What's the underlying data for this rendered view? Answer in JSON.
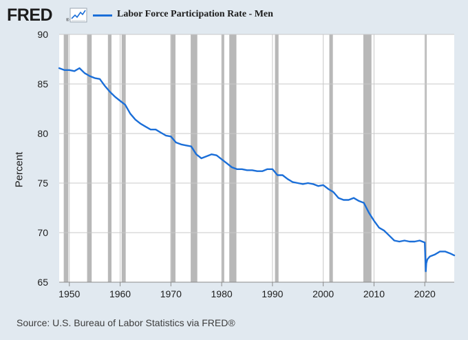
{
  "header": {
    "logo_text": "FRED",
    "logo_reg": "®",
    "legend_label": "Labor Force Participation Rate - Men"
  },
  "source_text": "Source: U.S. Bureau of Labor Statistics via FRED®",
  "colors": {
    "background": "#e1e9f0",
    "plot_bg": "#ffffff",
    "line": "#1a6ed8",
    "recession": "#b8b8b8",
    "grid": "#c8c8c8"
  },
  "chart_data": {
    "type": "line",
    "title": "",
    "xlabel": "",
    "ylabel": "Percent",
    "xlim": [
      1948,
      2025.8
    ],
    "ylim": [
      65,
      90
    ],
    "x_ticks": [
      1950,
      1960,
      1970,
      1980,
      1990,
      2000,
      2010,
      2020
    ],
    "x_tick_labels": [
      "1950",
      "1960",
      "1970",
      "1980",
      "1990",
      "2000",
      "2010",
      "2020"
    ],
    "y_ticks": [
      65,
      70,
      75,
      80,
      85,
      90
    ],
    "y_tick_labels": [
      "65",
      "70",
      "75",
      "80",
      "85",
      "90"
    ],
    "grid": true,
    "recessions": [
      [
        1948.9,
        1949.8
      ],
      [
        1953.5,
        1954.4
      ],
      [
        1957.6,
        1958.3
      ],
      [
        1960.3,
        1961.1
      ],
      [
        1969.9,
        1970.9
      ],
      [
        1973.9,
        1975.2
      ],
      [
        1980.0,
        1980.5
      ],
      [
        1981.5,
        1982.9
      ],
      [
        1990.5,
        1991.2
      ],
      [
        2001.2,
        2001.9
      ],
      [
        2007.9,
        2009.5
      ],
      [
        2020.1,
        2020.3
      ]
    ],
    "series": [
      {
        "name": "Labor Force Participation Rate - Men",
        "x": [
          1948.0,
          1949.0,
          1950.0,
          1951.0,
          1952.0,
          1953.0,
          1954.0,
          1955.0,
          1956.0,
          1957.0,
          1958.0,
          1959.0,
          1960.0,
          1961.0,
          1962.0,
          1963.0,
          1964.0,
          1965.0,
          1966.0,
          1967.0,
          1968.0,
          1969.0,
          1970.0,
          1971.0,
          1972.0,
          1973.0,
          1974.0,
          1975.0,
          1976.0,
          1977.0,
          1978.0,
          1979.0,
          1980.0,
          1981.0,
          1982.0,
          1983.0,
          1984.0,
          1985.0,
          1986.0,
          1987.0,
          1988.0,
          1989.0,
          1990.0,
          1991.0,
          1992.0,
          1993.0,
          1994.0,
          1995.0,
          1996.0,
          1997.0,
          1998.0,
          1999.0,
          2000.0,
          2001.0,
          2002.0,
          2003.0,
          2004.0,
          2005.0,
          2006.0,
          2007.0,
          2008.0,
          2009.0,
          2010.0,
          2011.0,
          2012.0,
          2013.0,
          2014.0,
          2015.0,
          2016.0,
          2017.0,
          2018.0,
          2019.0,
          2020.0,
          2020.2,
          2020.3,
          2020.5,
          2021.0,
          2022.0,
          2023.0,
          2024.0,
          2025.0,
          2025.8
        ],
        "y": [
          86.6,
          86.4,
          86.4,
          86.3,
          86.6,
          86.1,
          85.8,
          85.6,
          85.5,
          84.8,
          84.2,
          83.7,
          83.3,
          82.9,
          82.0,
          81.4,
          81.0,
          80.7,
          80.4,
          80.4,
          80.1,
          79.8,
          79.7,
          79.1,
          78.9,
          78.8,
          78.7,
          77.9,
          77.5,
          77.7,
          77.9,
          77.8,
          77.4,
          77.0,
          76.6,
          76.4,
          76.4,
          76.3,
          76.3,
          76.2,
          76.2,
          76.4,
          76.4,
          75.8,
          75.8,
          75.4,
          75.1,
          75.0,
          74.9,
          75.0,
          74.9,
          74.7,
          74.8,
          74.4,
          74.1,
          73.5,
          73.3,
          73.3,
          73.5,
          73.2,
          73.0,
          72.0,
          71.2,
          70.5,
          70.2,
          69.7,
          69.2,
          69.1,
          69.2,
          69.1,
          69.1,
          69.2,
          69.0,
          66.1,
          66.9,
          67.3,
          67.6,
          67.8,
          68.1,
          68.1,
          67.9,
          67.7
        ]
      }
    ]
  }
}
